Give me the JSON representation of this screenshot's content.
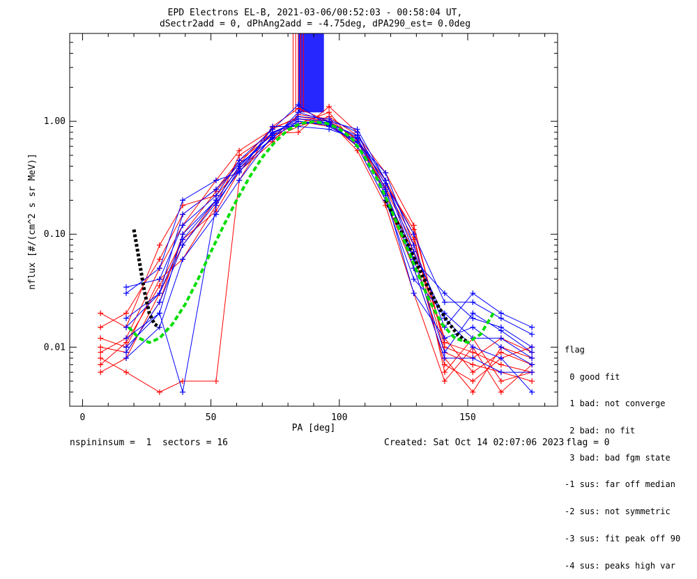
{
  "title_line1": "EPD Electrons EL-B, 2021-03-06/00:52:03 - 00:58:04 UT,",
  "title_line2": "dSectr2add = 0, dPhAng2add = -4.75deg, dPA290_est=   0.0deg",
  "footer": {
    "left": "nspininsum =  1  sectors = 16",
    "created": "Created: Sat Oct 14 02:07:06 2023",
    "flag": "flag = 0"
  },
  "legend": {
    "title": "flag",
    "items": [
      " 0 good fit",
      " 1 bad: not converge",
      " 2 bad: no fit",
      " 3 bad: bad fgm state",
      "-1 sus: far off median",
      "-2 sus: not symmetric",
      "-3 sus: fit peak off 90",
      "-4 sus: peaks high var"
    ]
  },
  "chart_data": {
    "type": "line",
    "xlabel": "PA [deg]",
    "ylabel": "nflux [#/(cm^2 s sr MeV)]",
    "xlim": [
      -5,
      185
    ],
    "ylim": [
      0.003,
      6.0
    ],
    "yscale": "log",
    "x_ticks": [
      0,
      50,
      100,
      150
    ],
    "x_tick_labels": [
      "0",
      "50",
      "100",
      "150"
    ],
    "y_ticks": [
      0.01,
      0.1,
      1.0
    ],
    "y_tick_labels": [
      "0.01",
      "0.10",
      "1.00"
    ],
    "pa_bins": [
      7,
      17,
      30,
      39,
      52,
      61,
      74,
      84,
      96,
      107,
      118,
      129,
      141,
      152,
      163,
      175
    ],
    "colors": {
      "red_series": "#ff0000",
      "blue_series": "#0000ff",
      "fit": "#00dd00",
      "median": "#000000"
    },
    "series": [
      {
        "color": "red",
        "values": [
          0.009,
          0.012,
          0.05,
          0.12,
          0.3,
          0.55,
          0.85,
          1.1,
          1.0,
          0.7,
          0.25,
          0.08,
          0.012,
          0.006,
          0.009,
          0.007
        ]
      },
      {
        "color": "red",
        "values": [
          0.015,
          0.02,
          0.06,
          0.15,
          0.25,
          0.45,
          0.75,
          0.95,
          1.2,
          0.6,
          0.2,
          0.05,
          0.008,
          0.004,
          0.01,
          0.008
        ]
      },
      {
        "color": "red",
        "values": [
          0.006,
          0.008,
          0.03,
          0.08,
          0.2,
          0.4,
          0.8,
          1.0,
          0.9,
          0.65,
          0.3,
          0.1,
          0.006,
          0.012,
          0.005,
          0.006
        ]
      },
      {
        "color": "red",
        "values": [
          0.02,
          0.015,
          0.08,
          0.18,
          0.22,
          0.38,
          0.7,
          0.9,
          1.1,
          0.75,
          0.35,
          0.12,
          0.01,
          0.008,
          0.012,
          0.009
        ]
      },
      {
        "color": "red",
        "values": [
          0.008,
          0.006,
          0.004,
          0.005,
          0.005,
          0.3,
          0.9,
          1.3,
          1.0,
          0.55,
          0.18,
          0.03,
          0.005,
          0.01,
          0.004,
          0.007
        ]
      },
      {
        "color": "red",
        "values": [
          0.012,
          0.01,
          0.04,
          0.06,
          0.18,
          0.5,
          0.78,
          0.8,
          1.35,
          0.8,
          0.22,
          0.07,
          0.007,
          0.005,
          0.008,
          0.01
        ]
      },
      {
        "color": "red",
        "values": [
          0.01,
          0.009,
          0.025,
          0.1,
          0.24,
          0.42,
          0.88,
          1.05,
          0.95,
          0.6,
          0.26,
          0.09,
          0.009,
          0.007,
          0.006,
          0.005
        ]
      },
      {
        "color": "red",
        "values": [
          0.007,
          0.011,
          0.035,
          0.09,
          0.16,
          0.36,
          0.66,
          1.15,
          1.05,
          0.68,
          0.28,
          0.11,
          0.011,
          0.009,
          0.007,
          0.006
        ]
      },
      {
        "color": "blue",
        "values": [
          null,
          0.01,
          0.02,
          0.1,
          0.2,
          0.4,
          0.8,
          1.0,
          0.95,
          0.75,
          0.3,
          0.06,
          0.03,
          0.018,
          0.015,
          0.01
        ]
      },
      {
        "color": "blue",
        "values": [
          null,
          0.015,
          0.03,
          0.15,
          0.25,
          0.42,
          0.7,
          1.2,
          1.0,
          0.6,
          0.2,
          0.04,
          0.02,
          0.012,
          0.012,
          0.008
        ]
      },
      {
        "color": "blue",
        "values": [
          null,
          0.03,
          0.05,
          0.2,
          0.3,
          0.35,
          0.9,
          0.9,
          0.85,
          0.7,
          0.28,
          0.1,
          0.025,
          0.025,
          0.018,
          0.013
        ]
      },
      {
        "color": "blue",
        "values": [
          null,
          0.008,
          0.015,
          0.06,
          0.15,
          0.3,
          0.75,
          1.1,
          1.05,
          0.8,
          0.25,
          0.05,
          0.008,
          0.008,
          0.006,
          0.006
        ]
      },
      {
        "color": "blue",
        "values": [
          null,
          0.034,
          0.04,
          0.12,
          0.22,
          0.45,
          0.85,
          1.4,
          0.9,
          0.65,
          0.35,
          0.08,
          0.015,
          0.03,
          0.02,
          0.015
        ]
      },
      {
        "color": "blue",
        "values": [
          null,
          0.012,
          0.02,
          0.004,
          0.18,
          0.38,
          0.8,
          0.95,
          0.98,
          0.72,
          0.22,
          0.03,
          0.012,
          0.015,
          0.01,
          0.007
        ]
      },
      {
        "color": "blue",
        "values": [
          null,
          0.018,
          0.03,
          0.09,
          0.2,
          0.4,
          0.78,
          1.05,
          1.0,
          0.85,
          0.3,
          0.07,
          0.018,
          0.01,
          0.008,
          0.004
        ]
      },
      {
        "color": "blue",
        "values": [
          null,
          0.009,
          0.025,
          0.08,
          0.19,
          0.36,
          0.72,
          1.0,
          0.92,
          0.66,
          0.24,
          0.06,
          0.009,
          0.02,
          0.014,
          0.009
        ]
      }
    ],
    "fit_curve": {
      "name": "fit",
      "x": [
        18,
        22,
        26,
        30,
        35,
        40,
        45,
        50,
        55,
        60,
        65,
        70,
        75,
        80,
        85,
        90,
        95,
        100,
        105,
        110,
        115,
        120,
        125,
        130,
        135,
        140,
        145,
        150,
        155,
        160
      ],
      "y": [
        0.015,
        0.012,
        0.011,
        0.012,
        0.016,
        0.024,
        0.04,
        0.07,
        0.12,
        0.2,
        0.32,
        0.48,
        0.66,
        0.84,
        0.96,
        0.99,
        0.96,
        0.86,
        0.7,
        0.48,
        0.3,
        0.17,
        0.09,
        0.048,
        0.026,
        0.016,
        0.012,
        0.011,
        0.013,
        0.02
      ]
    },
    "median_curve": {
      "name": "median",
      "x": [
        20,
        22,
        24,
        26,
        28,
        30
      ],
      "y": [
        0.11,
        0.06,
        0.032,
        0.02,
        0.016,
        0.015
      ]
    },
    "median_curve_right": {
      "x": [
        118,
        123,
        128,
        133,
        138,
        142,
        146,
        150
      ],
      "y": [
        0.2,
        0.12,
        0.07,
        0.04,
        0.024,
        0.017,
        0.013,
        0.011
      ]
    },
    "saturated_spike": {
      "x_from": 84,
      "x_to": 94,
      "y_from": 1.2,
      "y_to": 6.0
    }
  }
}
